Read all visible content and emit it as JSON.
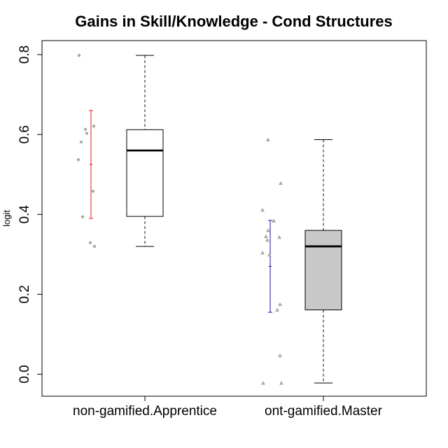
{
  "chart_data": {
    "type": "boxplot",
    "title": "Gains in Skill/Knowledge - Cond Structures",
    "ylabel": "logit",
    "xlabel": "",
    "ylim": [
      -0.055,
      0.835
    ],
    "yticks": [
      "0.0",
      "0.2",
      "0.4",
      "0.6",
      "0.8"
    ],
    "ytick_values": [
      0.0,
      0.2,
      0.4,
      0.6,
      0.8
    ],
    "grid": false,
    "groups": [
      {
        "label": "non-gamified.Apprentice",
        "box_fill": "#ffffff",
        "point_marker": "circle",
        "point_color": "#aaaaaa",
        "whisker_low": 0.32,
        "q1": 0.395,
        "median": 0.56,
        "q3": 0.612,
        "whisker_high": 0.798,
        "mean": 0.525,
        "error_low": 0.39,
        "error_high": 0.66,
        "error_color": "#e8141c",
        "points": [
          {
            "jitter": -0.17,
            "y": 0.798
          },
          {
            "jitter": -0.08,
            "y": 0.613
          },
          {
            "jitter": -0.06,
            "y": 0.603
          },
          {
            "jitter": 0.04,
            "y": 0.621
          },
          {
            "jitter": -0.14,
            "y": 0.581
          },
          {
            "jitter": -0.18,
            "y": 0.537
          },
          {
            "jitter": 0.03,
            "y": 0.458
          },
          {
            "jitter": -0.12,
            "y": 0.394
          },
          {
            "jitter": -0.01,
            "y": 0.329
          },
          {
            "jitter": 0.05,
            "y": 0.32
          }
        ]
      },
      {
        "label": "ont-gamified.Master",
        "box_fill": "#c8c8c8",
        "point_marker": "triangle",
        "point_color": "#aaaaaa",
        "whisker_low": -0.022,
        "q1": 0.161,
        "median": 0.32,
        "q3": 0.36,
        "whisker_high": 0.587,
        "mean": 0.27,
        "error_low": 0.155,
        "error_high": 0.385,
        "error_color": "#1a1aa0",
        "points": [
          {
            "jitter": -0.02,
            "y": 0.587
          },
          {
            "jitter": 0.16,
            "y": 0.478
          },
          {
            "jitter": -0.1,
            "y": 0.411
          },
          {
            "jitter": 0.06,
            "y": 0.384
          },
          {
            "jitter": -0.02,
            "y": 0.36
          },
          {
            "jitter": -0.05,
            "y": 0.345
          },
          {
            "jitter": 0.14,
            "y": 0.343
          },
          {
            "jitter": -0.03,
            "y": 0.336
          },
          {
            "jitter": -0.1,
            "y": 0.304
          },
          {
            "jitter": 0.0,
            "y": 0.299
          },
          {
            "jitter": 0.15,
            "y": 0.175
          },
          {
            "jitter": 0.11,
            "y": 0.161
          },
          {
            "jitter": 0.15,
            "y": 0.047
          },
          {
            "jitter": -0.09,
            "y": -0.022
          },
          {
            "jitter": 0.17,
            "y": -0.022
          }
        ]
      }
    ]
  }
}
